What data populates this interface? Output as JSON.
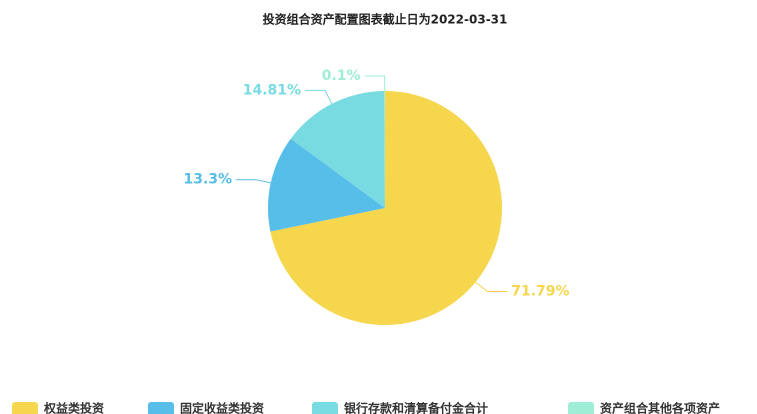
{
  "chart_data": {
    "type": "pie",
    "title": "投资组合资产配置图表截止日为2022-03-31",
    "categories": [
      "权益类投资",
      "固定收益类投资",
      "银行存款和清算备付金合计",
      "资产组合其他各项资产"
    ],
    "values": [
      71.79,
      13.3,
      14.81,
      0.1
    ],
    "value_labels": [
      "71.79%",
      "13.3%",
      "14.81%",
      "0.1%"
    ],
    "colors": [
      "#f6d64c",
      "#56bee8",
      "#78dbe1",
      "#9eeed6"
    ],
    "legend": "bottom"
  }
}
